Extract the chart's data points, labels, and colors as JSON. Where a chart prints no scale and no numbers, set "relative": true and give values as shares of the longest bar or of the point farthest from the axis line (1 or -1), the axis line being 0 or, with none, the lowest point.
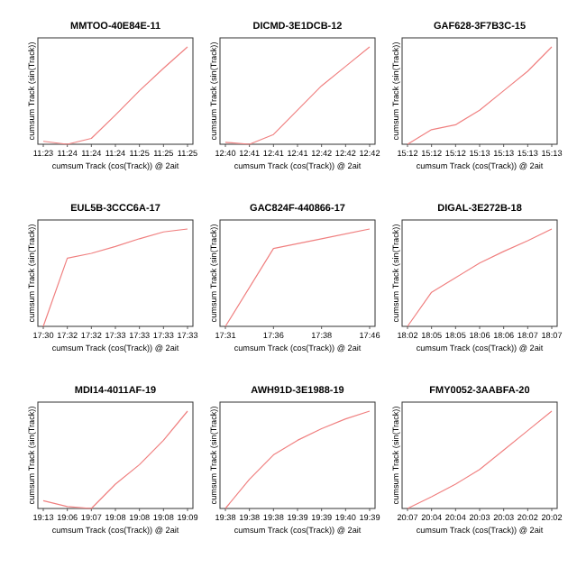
{
  "chart_data": [
    {
      "type": "line",
      "title": "MMTOO-40E84E-11",
      "xlabel": "cumsum Track (cos(Track)) @ 2ait",
      "ylabel": "cumsum Track (sin(Track))",
      "relative": true,
      "categories": [
        "11:23",
        "11:24",
        "11:24",
        "11:24",
        "11:25",
        "11:25",
        "11:25"
      ],
      "series": [
        {
          "color": "#f08080",
          "values": [
            0.03,
            0,
            0.06,
            0.3,
            0.55,
            0.78,
            1
          ]
        }
      ],
      "grid": false,
      "marker": "none"
    },
    {
      "type": "line",
      "title": "DICMD-3E1DCB-12",
      "xlabel": "cumsum Track (cos(Track)) @ 2ait",
      "ylabel": "cumsum Track (sin(Track))",
      "relative": true,
      "categories": [
        "12:40",
        "12:41",
        "12:41",
        "12:41",
        "12:42",
        "12:42",
        "12:42"
      ],
      "series": [
        {
          "color": "#f08080",
          "values": [
            0.02,
            0,
            0.1,
            0.35,
            0.6,
            0.8,
            1
          ]
        }
      ],
      "grid": false,
      "marker": "none"
    },
    {
      "type": "line",
      "title": "GAF628-3F7B3C-15",
      "xlabel": "cumsum Track (cos(Track)) @ 2ait",
      "ylabel": "cumsum Track (sin(Track))",
      "relative": true,
      "categories": [
        "15:12",
        "15:12",
        "15:12",
        "15:13",
        "15:13",
        "15:13",
        "15:13"
      ],
      "series": [
        {
          "color": "#f08080",
          "values": [
            0,
            0.15,
            0.2,
            0.35,
            0.55,
            0.75,
            1
          ]
        }
      ],
      "grid": false,
      "marker": "none"
    },
    {
      "type": "line",
      "title": "EUL5B-3CCC6A-17",
      "xlabel": "cumsum Track (cos(Track)) @ 2ait",
      "ylabel": "cumsum Track (sin(Track))",
      "relative": true,
      "categories": [
        "17:30",
        "17:32",
        "17:32",
        "17:33",
        "17:33",
        "17:33",
        "17:33"
      ],
      "series": [
        {
          "color": "#f08080",
          "values": [
            0,
            0.7,
            0.75,
            0.82,
            0.9,
            0.97,
            1
          ]
        }
      ],
      "grid": false,
      "marker": "none"
    },
    {
      "type": "line",
      "title": "GAC824F-440866-17",
      "xlabel": "cumsum Track (cos(Track)) @ 2ait",
      "ylabel": "cumsum Track (sin(Track))",
      "relative": true,
      "categories": [
        "17:31",
        "17:36",
        "17:38",
        "17:46"
      ],
      "series": [
        {
          "color": "#f08080",
          "values": [
            0,
            0.8,
            0.9,
            1
          ]
        }
      ],
      "grid": false,
      "marker": "none"
    },
    {
      "type": "line",
      "title": "DIGAL-3E272B-18",
      "xlabel": "cumsum Track (cos(Track)) @ 2ait",
      "ylabel": "cumsum Track (sin(Track))",
      "relative": true,
      "categories": [
        "18:02",
        "18:05",
        "18:05",
        "18:06",
        "18:06",
        "18:07",
        "18:07"
      ],
      "series": [
        {
          "color": "#f08080",
          "values": [
            0,
            0.35,
            0.5,
            0.65,
            0.77,
            0.88,
            1
          ]
        }
      ],
      "grid": false,
      "marker": "none"
    },
    {
      "type": "line",
      "title": "MDI14-4011AF-19",
      "xlabel": "cumsum Track (cos(Track)) @ 2ait",
      "ylabel": "cumsum Track (sin(Track))",
      "relative": true,
      "categories": [
        "19:13",
        "19:06",
        "19:07",
        "19:08",
        "19:08",
        "19:08",
        "19:09"
      ],
      "series": [
        {
          "color": "#f08080",
          "values": [
            0.08,
            0.02,
            0,
            0.25,
            0.45,
            0.7,
            1
          ]
        }
      ],
      "grid": false,
      "marker": "none"
    },
    {
      "type": "line",
      "title": "AWH91D-3E1988-19",
      "xlabel": "cumsum Track (cos(Track)) @ 2ait",
      "ylabel": "cumsum Track (sin(Track))",
      "relative": true,
      "categories": [
        "19:38",
        "19:38",
        "19:38",
        "19:39",
        "19:39",
        "19:40",
        "19:39"
      ],
      "series": [
        {
          "color": "#f08080",
          "values": [
            0,
            0.3,
            0.55,
            0.7,
            0.82,
            0.92,
            1
          ]
        }
      ],
      "grid": false,
      "marker": "none"
    },
    {
      "type": "line",
      "title": "FMY0052-3AABFA-20",
      "xlabel": "cumsum Track (cos(Track)) @ 2ait",
      "ylabel": "cumsum Track (sin(Track))",
      "relative": true,
      "categories": [
        "20:07",
        "20:04",
        "20:04",
        "20:03",
        "20:03",
        "20:02",
        "20:02"
      ],
      "series": [
        {
          "color": "#f08080",
          "values": [
            0,
            0.12,
            0.25,
            0.4,
            0.6,
            0.8,
            1
          ]
        }
      ],
      "grid": false,
      "marker": "none"
    }
  ]
}
